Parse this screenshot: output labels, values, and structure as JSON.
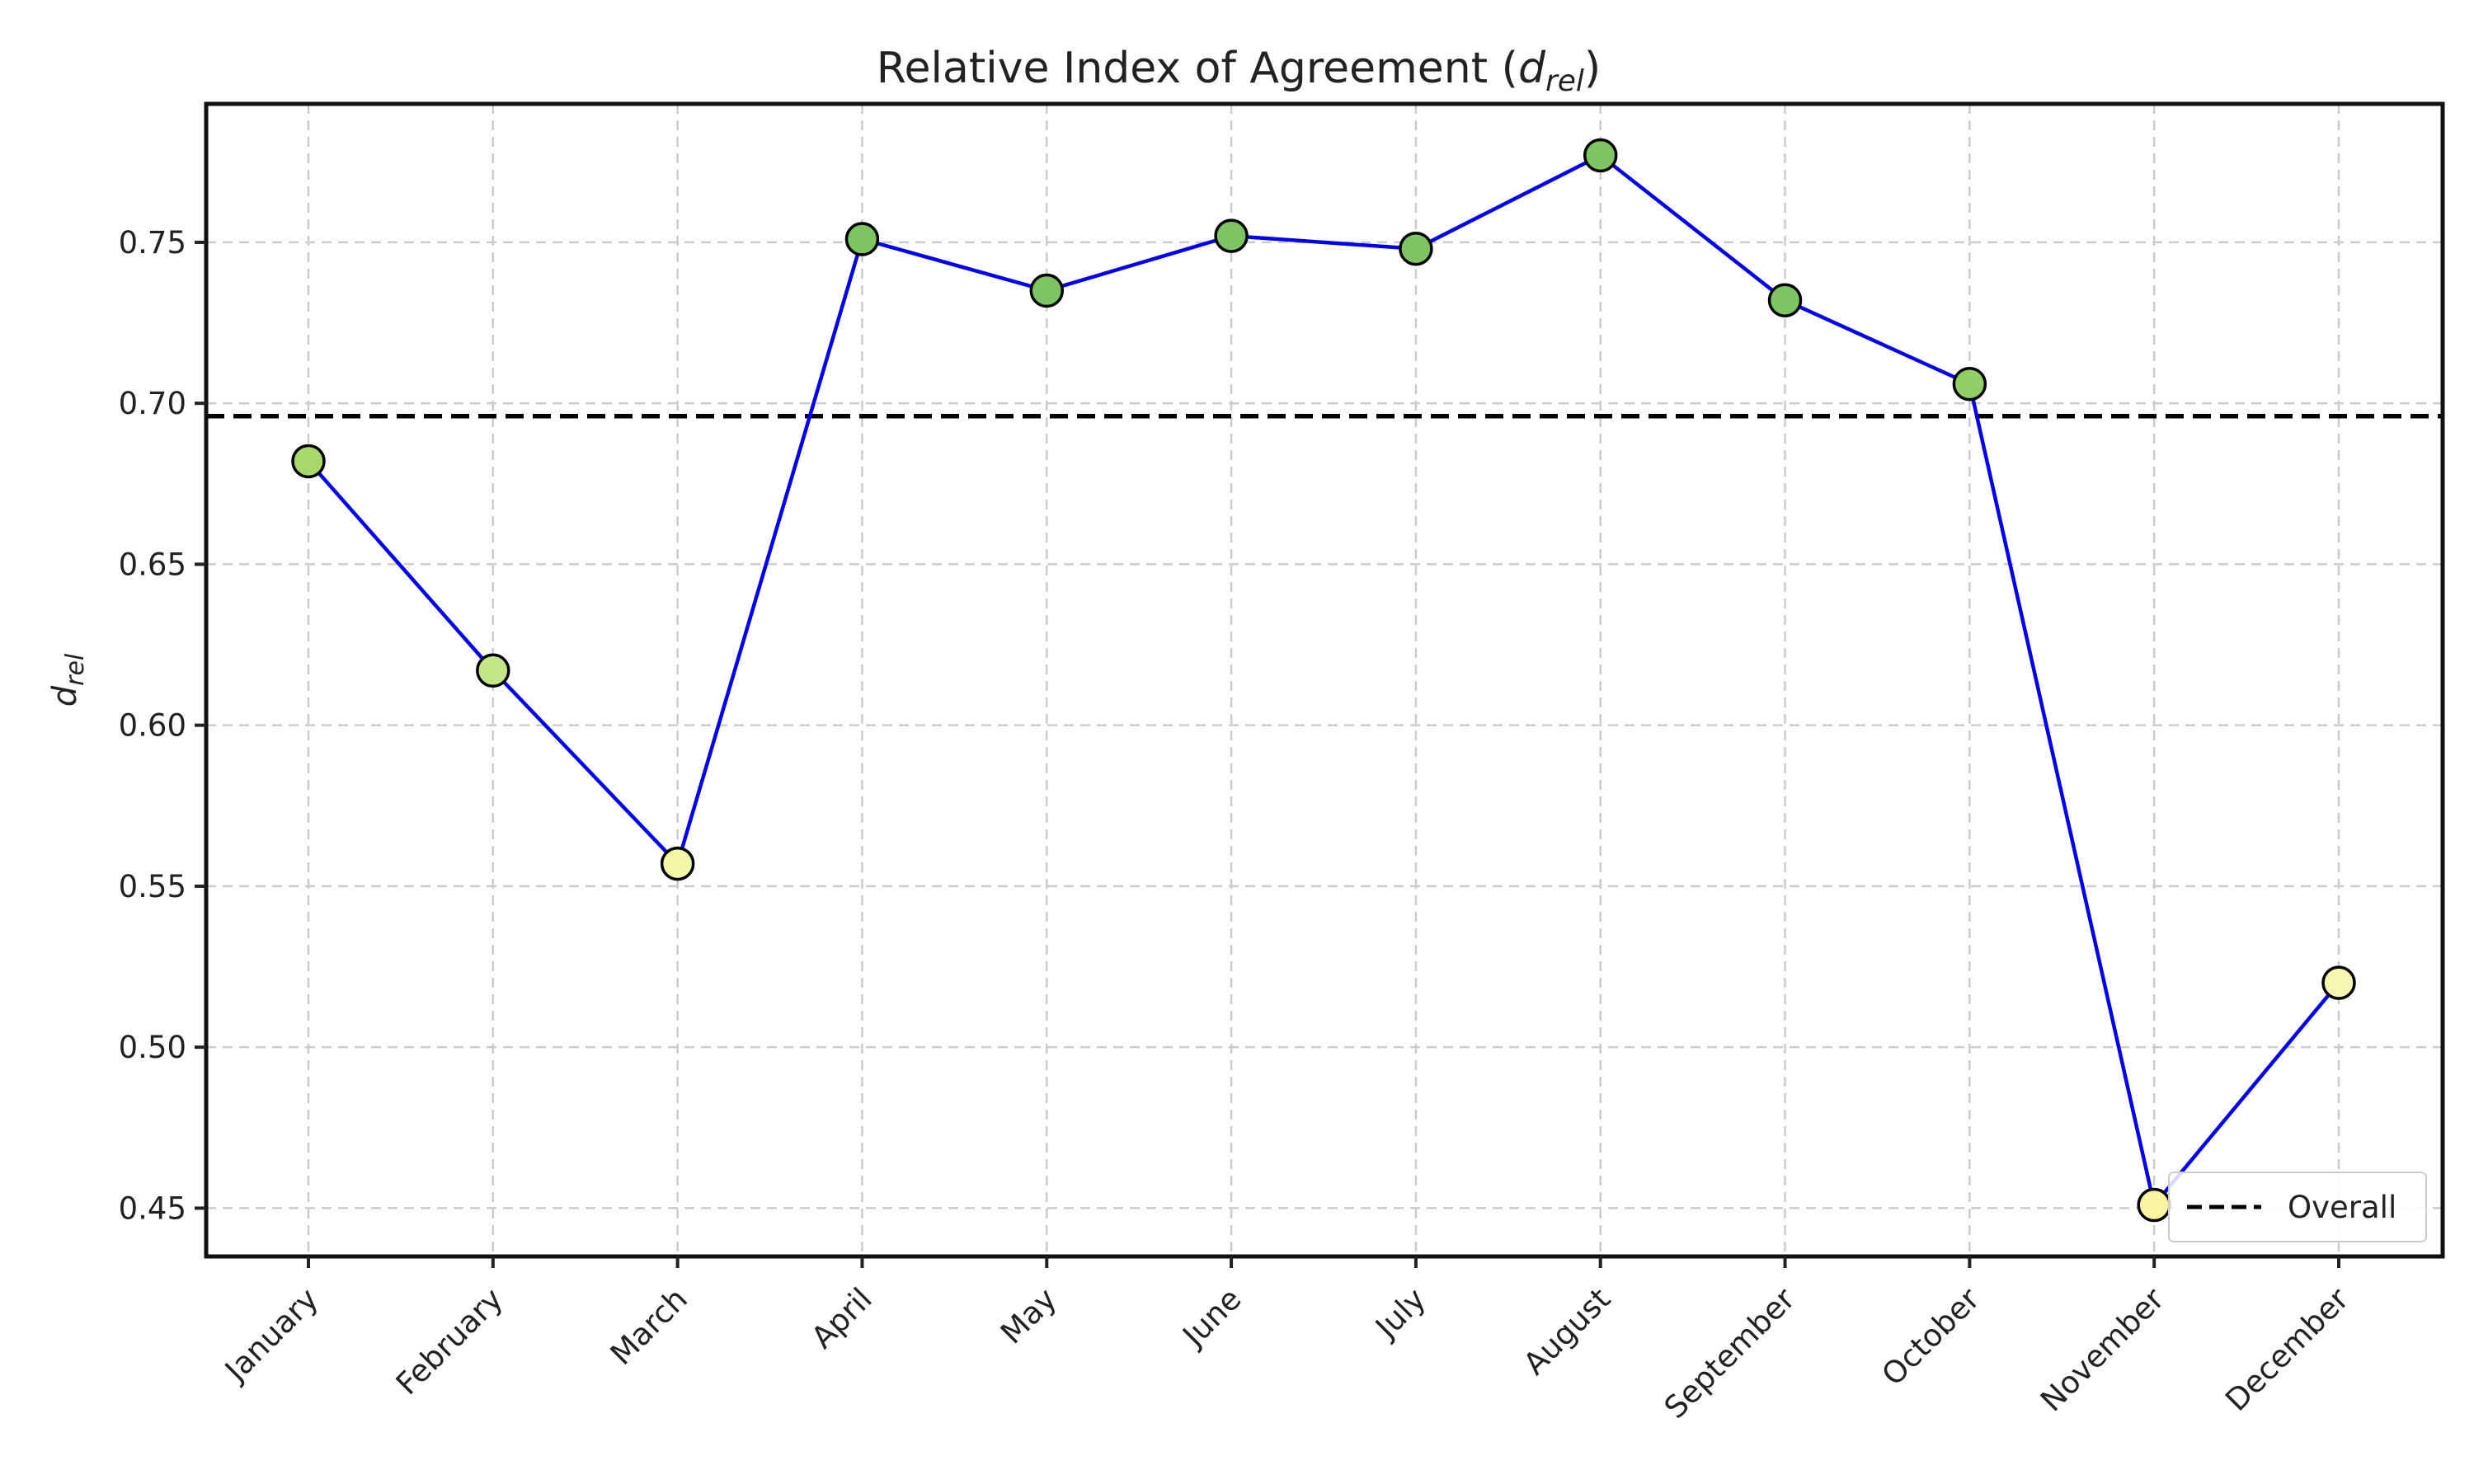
{
  "chart_data": {
    "type": "line",
    "title": "Relative Index of Agreement",
    "title_math": "d",
    "title_math_sub": "rel",
    "ylabel": "d",
    "ylabel_sub": "rel",
    "xlabel": "",
    "categories": [
      "January",
      "February",
      "March",
      "April",
      "May",
      "June",
      "July",
      "August",
      "September",
      "October",
      "November",
      "December"
    ],
    "series": [
      {
        "values": [
          0.682,
          0.617,
          0.557,
          0.751,
          0.735,
          0.752,
          0.748,
          0.777,
          0.732,
          0.706,
          0.451,
          0.52
        ],
        "color": "#0000ee",
        "marker_colors": [
          "#a6d96a",
          "#c4e687",
          "#f2f8a8",
          "#7dc462",
          "#7dc462",
          "#7dc462",
          "#7dc462",
          "#7dc462",
          "#7dc462",
          "#8fcf65",
          "#fbf3a2",
          "#f6f7b0"
        ]
      }
    ],
    "reference_line": {
      "name": "Overall",
      "value": 0.696,
      "color": "#000000",
      "style": "dashed"
    },
    "ylim": [
      0.435,
      0.793
    ],
    "yticks": [
      "0.45",
      "0.50",
      "0.55",
      "0.60",
      "0.65",
      "0.70",
      "0.75"
    ],
    "grid": true,
    "legend_position": "lower-right"
  }
}
